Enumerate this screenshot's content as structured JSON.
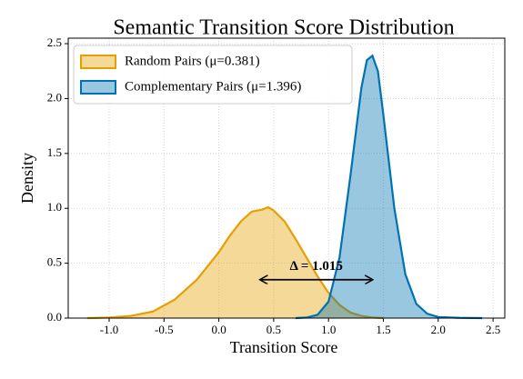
{
  "chart_data": {
    "type": "kde",
    "title": "Semantic Transition Score Distribution",
    "x_label": "Transition Score",
    "y_label": "Density",
    "xlim": [
      -1.373,
      2.607
    ],
    "ylim": [
      0,
      2.55
    ],
    "xticks": [
      {
        "value": -1,
        "label": "-1.0"
      },
      -0.5,
      {
        "value": 0,
        "label": "0.0"
      },
      0.5,
      {
        "value": 1,
        "label": "1.0"
      },
      1.5,
      {
        "value": 2,
        "label": "2.0"
      },
      2.5
    ],
    "yticks": [
      {
        "value": 0,
        "label": "0.0"
      },
      0.5,
      {
        "value": 1,
        "label": "1.0"
      },
      1.5,
      {
        "value": 2,
        "label": "2.0"
      },
      2.5
    ],
    "grid": true,
    "legend": "upper left",
    "series": [
      {
        "name": "Random Pairs (μ=0.381)",
        "color": "#E69F00",
        "x": [
          -1.2,
          -1.0,
          -0.8,
          -0.6,
          -0.4,
          -0.2,
          0.0,
          0.1,
          0.2,
          0.3,
          0.4,
          0.45,
          0.5,
          0.6,
          0.7,
          0.8,
          0.9,
          1.0,
          1.1,
          1.2,
          1.3,
          1.4,
          1.5
        ],
        "values": [
          0.0,
          0.005,
          0.02,
          0.06,
          0.17,
          0.35,
          0.6,
          0.75,
          0.88,
          0.97,
          0.99,
          1.01,
          0.98,
          0.88,
          0.72,
          0.55,
          0.38,
          0.23,
          0.12,
          0.05,
          0.02,
          0.005,
          0.0
        ]
      },
      {
        "name": "Complementary Pairs (μ=1.396)",
        "color": "#0072B2",
        "x": [
          0.7,
          0.8,
          0.9,
          1.0,
          1.1,
          1.2,
          1.3,
          1.35,
          1.4,
          1.45,
          1.5,
          1.6,
          1.7,
          1.8,
          1.9,
          2.0,
          2.2,
          2.4
        ],
        "values": [
          0.0,
          0.005,
          0.03,
          0.15,
          0.55,
          1.3,
          2.1,
          2.35,
          2.39,
          2.25,
          1.85,
          1.0,
          0.4,
          0.13,
          0.04,
          0.01,
          0.002,
          0.0
        ]
      }
    ],
    "annotation": {
      "text": "Δ = 1.015",
      "x_start": 0.381,
      "x_end": 1.396,
      "y": 0.35
    }
  }
}
